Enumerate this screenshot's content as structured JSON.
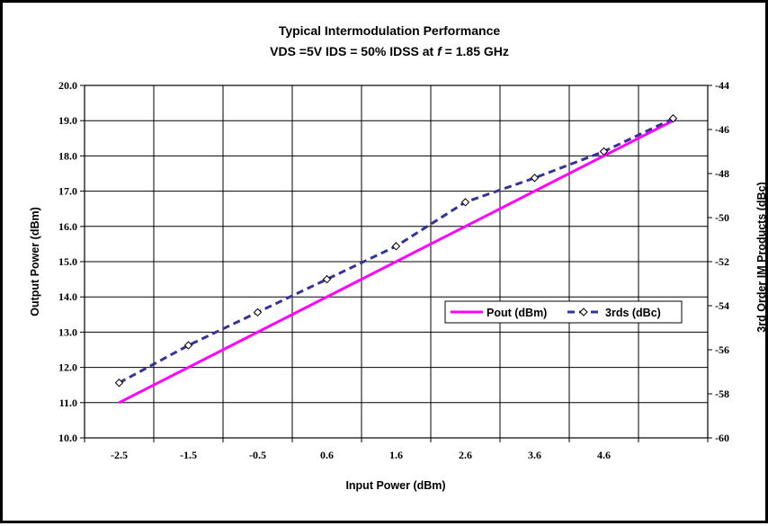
{
  "chart_data": {
    "type": "line",
    "title": "Typical Intermodulation Performance",
    "subtitle_parts": [
      "VDS =5V IDS = 50% IDSS at ",
      "f",
      " = 1.85 GHz"
    ],
    "xlabel": "Input Power (dBm)",
    "ylabel": "Output Power (dBm)",
    "y2label": "3rd Order IM Products (dBc)",
    "x_tick_labels": [
      "-2.5",
      "-1.5",
      "-0.5",
      "0.6",
      "1.6",
      "2.6",
      "3.6",
      "4.6"
    ],
    "y_tick_labels": [
      "10.0",
      "11.0",
      "12.0",
      "13.0",
      "14.0",
      "15.0",
      "16.0",
      "17.0",
      "18.0",
      "19.0",
      "20.0"
    ],
    "y2_tick_labels": [
      "-60",
      "-58",
      "-56",
      "-54",
      "-52",
      "-50",
      "-48",
      "-46",
      "-44"
    ],
    "xlim": [
      -3,
      6
    ],
    "ylim": [
      10,
      20
    ],
    "y2lim": [
      -60,
      -44
    ],
    "grid": true,
    "legend_position": "right-middle",
    "series": [
      {
        "name": "Pout (dBm)",
        "axis": "left",
        "color": "#ff00ff",
        "style": "solid",
        "marker": "none",
        "x": [
          -2.5,
          5.5
        ],
        "y": [
          11.0,
          19.0
        ]
      },
      {
        "name": "3rds (dBc)",
        "axis": "right",
        "color": "#333399",
        "style": "dashed",
        "marker": "diamond",
        "x": [
          -2.5,
          -1.5,
          -0.5,
          0.5,
          1.5,
          2.5,
          3.5,
          4.5,
          5.5
        ],
        "y": [
          -57.5,
          -55.8,
          -54.3,
          -52.8,
          -51.3,
          -49.3,
          -48.2,
          -47.0,
          -45.5
        ]
      }
    ]
  }
}
